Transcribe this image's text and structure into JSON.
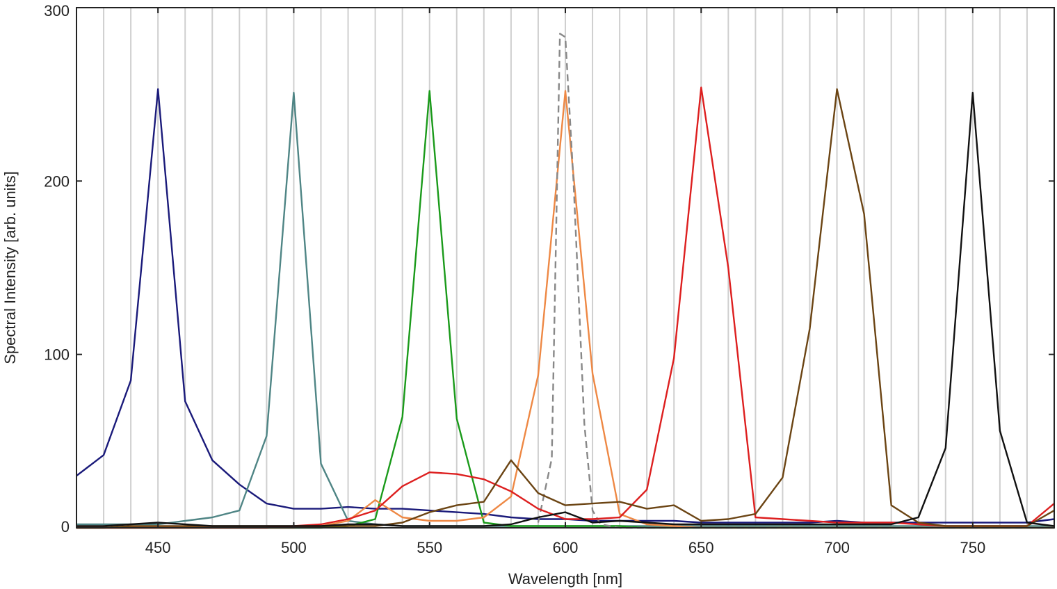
{
  "chart_data": {
    "type": "line",
    "xlabel": "Wavelength [nm]",
    "ylabel": "Spectral Intensity [arb. units]",
    "xlim": [
      420,
      780
    ],
    "ylim": [
      0,
      300
    ],
    "x_ticks": [
      450,
      500,
      550,
      600,
      650,
      700,
      750
    ],
    "y_ticks": [
      0,
      100,
      200,
      300
    ],
    "grid": "vertical",
    "legend": "none",
    "series": [
      {
        "color": "#1a1a7a",
        "dash": "solid",
        "points": [
          [
            420,
            30
          ],
          [
            430,
            42
          ],
          [
            440,
            85
          ],
          [
            450,
            253
          ],
          [
            460,
            73
          ],
          [
            470,
            39
          ],
          [
            480,
            25
          ],
          [
            490,
            14
          ],
          [
            500,
            11
          ],
          [
            510,
            11
          ],
          [
            520,
            12
          ],
          [
            530,
            11
          ],
          [
            540,
            11
          ],
          [
            550,
            10
          ],
          [
            560,
            9
          ],
          [
            570,
            8
          ],
          [
            580,
            6
          ],
          [
            590,
            5
          ],
          [
            600,
            5
          ],
          [
            610,
            4
          ],
          [
            620,
            4
          ],
          [
            630,
            4
          ],
          [
            640,
            4
          ],
          [
            650,
            3
          ],
          [
            660,
            3
          ],
          [
            670,
            3
          ],
          [
            680,
            3
          ],
          [
            690,
            3
          ],
          [
            700,
            4
          ],
          [
            710,
            3
          ],
          [
            720,
            3
          ],
          [
            730,
            3
          ],
          [
            740,
            3
          ],
          [
            750,
            3
          ],
          [
            760,
            3
          ],
          [
            770,
            3
          ],
          [
            780,
            5
          ]
        ]
      },
      {
        "color": "#4f8585",
        "dash": "solid",
        "points": [
          [
            420,
            2
          ],
          [
            430,
            2
          ],
          [
            440,
            2
          ],
          [
            450,
            2
          ],
          [
            460,
            4
          ],
          [
            470,
            6
          ],
          [
            480,
            10
          ],
          [
            490,
            53
          ],
          [
            500,
            251
          ],
          [
            510,
            37
          ],
          [
            520,
            4
          ],
          [
            530,
            2
          ],
          [
            540,
            1
          ],
          [
            550,
            1
          ],
          [
            560,
            1
          ],
          [
            570,
            1
          ],
          [
            580,
            1
          ],
          [
            590,
            1
          ],
          [
            600,
            1
          ],
          [
            610,
            1
          ],
          [
            620,
            1
          ],
          [
            630,
            1
          ],
          [
            640,
            1
          ],
          [
            650,
            1
          ],
          [
            660,
            1
          ],
          [
            670,
            1
          ],
          [
            680,
            1
          ],
          [
            690,
            1
          ],
          [
            700,
            1
          ],
          [
            710,
            1
          ],
          [
            720,
            1
          ],
          [
            730,
            1
          ],
          [
            740,
            1
          ],
          [
            750,
            1
          ],
          [
            760,
            1
          ],
          [
            770,
            1
          ],
          [
            780,
            1
          ]
        ]
      },
      {
        "color": "#1a9a1a",
        "dash": "solid",
        "points": [
          [
            420,
            0
          ],
          [
            430,
            0
          ],
          [
            440,
            0
          ],
          [
            450,
            0
          ],
          [
            460,
            0
          ],
          [
            470,
            0
          ],
          [
            480,
            0
          ],
          [
            490,
            0
          ],
          [
            500,
            0
          ],
          [
            510,
            0
          ],
          [
            520,
            1
          ],
          [
            530,
            5
          ],
          [
            540,
            64
          ],
          [
            550,
            252
          ],
          [
            560,
            63
          ],
          [
            570,
            3
          ],
          [
            580,
            1
          ],
          [
            590,
            1
          ],
          [
            600,
            1
          ],
          [
            610,
            1
          ],
          [
            620,
            1
          ],
          [
            630,
            0
          ],
          [
            640,
            0
          ],
          [
            650,
            0
          ],
          [
            660,
            0
          ],
          [
            670,
            0
          ],
          [
            680,
            0
          ],
          [
            690,
            0
          ],
          [
            700,
            0
          ],
          [
            710,
            0
          ],
          [
            720,
            0
          ],
          [
            730,
            0
          ],
          [
            740,
            0
          ],
          [
            750,
            0
          ],
          [
            760,
            0
          ],
          [
            770,
            0
          ],
          [
            780,
            0
          ]
        ]
      },
      {
        "color": "#ee8844",
        "dash": "solid",
        "points": [
          [
            420,
            0
          ],
          [
            430,
            0
          ],
          [
            440,
            0
          ],
          [
            450,
            0
          ],
          [
            460,
            0
          ],
          [
            470,
            0
          ],
          [
            480,
            0
          ],
          [
            490,
            0
          ],
          [
            500,
            0
          ],
          [
            510,
            1
          ],
          [
            520,
            4
          ],
          [
            530,
            16
          ],
          [
            540,
            6
          ],
          [
            550,
            4
          ],
          [
            560,
            4
          ],
          [
            570,
            6
          ],
          [
            580,
            18
          ],
          [
            590,
            88
          ],
          [
            600,
            252
          ],
          [
            610,
            89
          ],
          [
            620,
            8
          ],
          [
            630,
            2
          ],
          [
            640,
            1
          ],
          [
            650,
            0
          ],
          [
            660,
            0
          ],
          [
            670,
            0
          ],
          [
            680,
            0
          ],
          [
            690,
            0
          ],
          [
            700,
            0
          ],
          [
            710,
            0
          ],
          [
            720,
            0
          ],
          [
            730,
            0
          ],
          [
            740,
            0
          ],
          [
            750,
            0
          ],
          [
            760,
            0
          ],
          [
            770,
            0
          ],
          [
            780,
            0
          ]
        ]
      },
      {
        "color": "#888888",
        "dash": "dashed",
        "points": [
          [
            590,
            3
          ],
          [
            595,
            40
          ],
          [
            598,
            285
          ],
          [
            600,
            283
          ],
          [
            603,
            200
          ],
          [
            607,
            60
          ],
          [
            610,
            10
          ],
          [
            613,
            2
          ],
          [
            620,
            0
          ],
          [
            630,
            0
          ],
          [
            640,
            0
          ],
          [
            650,
            0
          ],
          [
            660,
            0
          ],
          [
            670,
            0
          ],
          [
            680,
            0
          ],
          [
            690,
            0
          ],
          [
            700,
            0
          ],
          [
            710,
            0
          ],
          [
            720,
            0
          ],
          [
            730,
            0
          ],
          [
            740,
            0
          ],
          [
            750,
            0
          ],
          [
            760,
            0
          ],
          [
            770,
            0
          ],
          [
            780,
            0
          ]
        ]
      },
      {
        "color": "#dd1f1f",
        "dash": "solid",
        "points": [
          [
            420,
            0
          ],
          [
            430,
            0
          ],
          [
            440,
            0
          ],
          [
            450,
            0
          ],
          [
            460,
            0
          ],
          [
            470,
            0
          ],
          [
            480,
            0
          ],
          [
            490,
            0
          ],
          [
            500,
            1
          ],
          [
            510,
            2
          ],
          [
            520,
            5
          ],
          [
            530,
            10
          ],
          [
            540,
            24
          ],
          [
            550,
            32
          ],
          [
            560,
            31
          ],
          [
            570,
            28
          ],
          [
            580,
            21
          ],
          [
            590,
            11
          ],
          [
            600,
            5
          ],
          [
            610,
            5
          ],
          [
            620,
            6
          ],
          [
            630,
            22
          ],
          [
            640,
            98
          ],
          [
            650,
            254
          ],
          [
            660,
            150
          ],
          [
            670,
            6
          ],
          [
            680,
            5
          ],
          [
            690,
            4
          ],
          [
            700,
            3
          ],
          [
            710,
            3
          ],
          [
            720,
            3
          ],
          [
            730,
            2
          ],
          [
            740,
            1
          ],
          [
            750,
            1
          ],
          [
            760,
            1
          ],
          [
            770,
            1
          ],
          [
            780,
            14
          ]
        ]
      },
      {
        "color": "#6b4413",
        "dash": "solid",
        "points": [
          [
            420,
            0
          ],
          [
            430,
            0
          ],
          [
            440,
            1
          ],
          [
            450,
            1
          ],
          [
            460,
            1
          ],
          [
            470,
            1
          ],
          [
            480,
            1
          ],
          [
            490,
            1
          ],
          [
            500,
            1
          ],
          [
            510,
            1
          ],
          [
            520,
            1
          ],
          [
            530,
            1
          ],
          [
            540,
            3
          ],
          [
            550,
            9
          ],
          [
            560,
            13
          ],
          [
            570,
            15
          ],
          [
            580,
            39
          ],
          [
            590,
            20
          ],
          [
            600,
            13
          ],
          [
            610,
            14
          ],
          [
            620,
            15
          ],
          [
            630,
            11
          ],
          [
            640,
            13
          ],
          [
            650,
            4
          ],
          [
            660,
            5
          ],
          [
            670,
            8
          ],
          [
            680,
            29
          ],
          [
            690,
            115
          ],
          [
            700,
            253
          ],
          [
            710,
            181
          ],
          [
            720,
            13
          ],
          [
            730,
            3
          ],
          [
            740,
            1
          ],
          [
            750,
            1
          ],
          [
            760,
            1
          ],
          [
            770,
            1
          ],
          [
            780,
            10
          ]
        ]
      },
      {
        "color": "#111111",
        "dash": "solid",
        "points": [
          [
            420,
            1
          ],
          [
            430,
            1
          ],
          [
            440,
            2
          ],
          [
            450,
            3
          ],
          [
            460,
            2
          ],
          [
            470,
            1
          ],
          [
            480,
            1
          ],
          [
            490,
            1
          ],
          [
            500,
            1
          ],
          [
            510,
            1
          ],
          [
            520,
            2
          ],
          [
            530,
            2
          ],
          [
            540,
            1
          ],
          [
            550,
            1
          ],
          [
            560,
            1
          ],
          [
            570,
            1
          ],
          [
            580,
            2
          ],
          [
            590,
            6
          ],
          [
            600,
            9
          ],
          [
            610,
            3
          ],
          [
            620,
            4
          ],
          [
            630,
            3
          ],
          [
            640,
            2
          ],
          [
            650,
            2
          ],
          [
            660,
            2
          ],
          [
            670,
            2
          ],
          [
            680,
            2
          ],
          [
            690,
            2
          ],
          [
            700,
            2
          ],
          [
            710,
            2
          ],
          [
            720,
            2
          ],
          [
            730,
            6
          ],
          [
            740,
            46
          ],
          [
            750,
            251
          ],
          [
            760,
            56
          ],
          [
            770,
            3
          ],
          [
            780,
            1
          ]
        ]
      }
    ]
  }
}
